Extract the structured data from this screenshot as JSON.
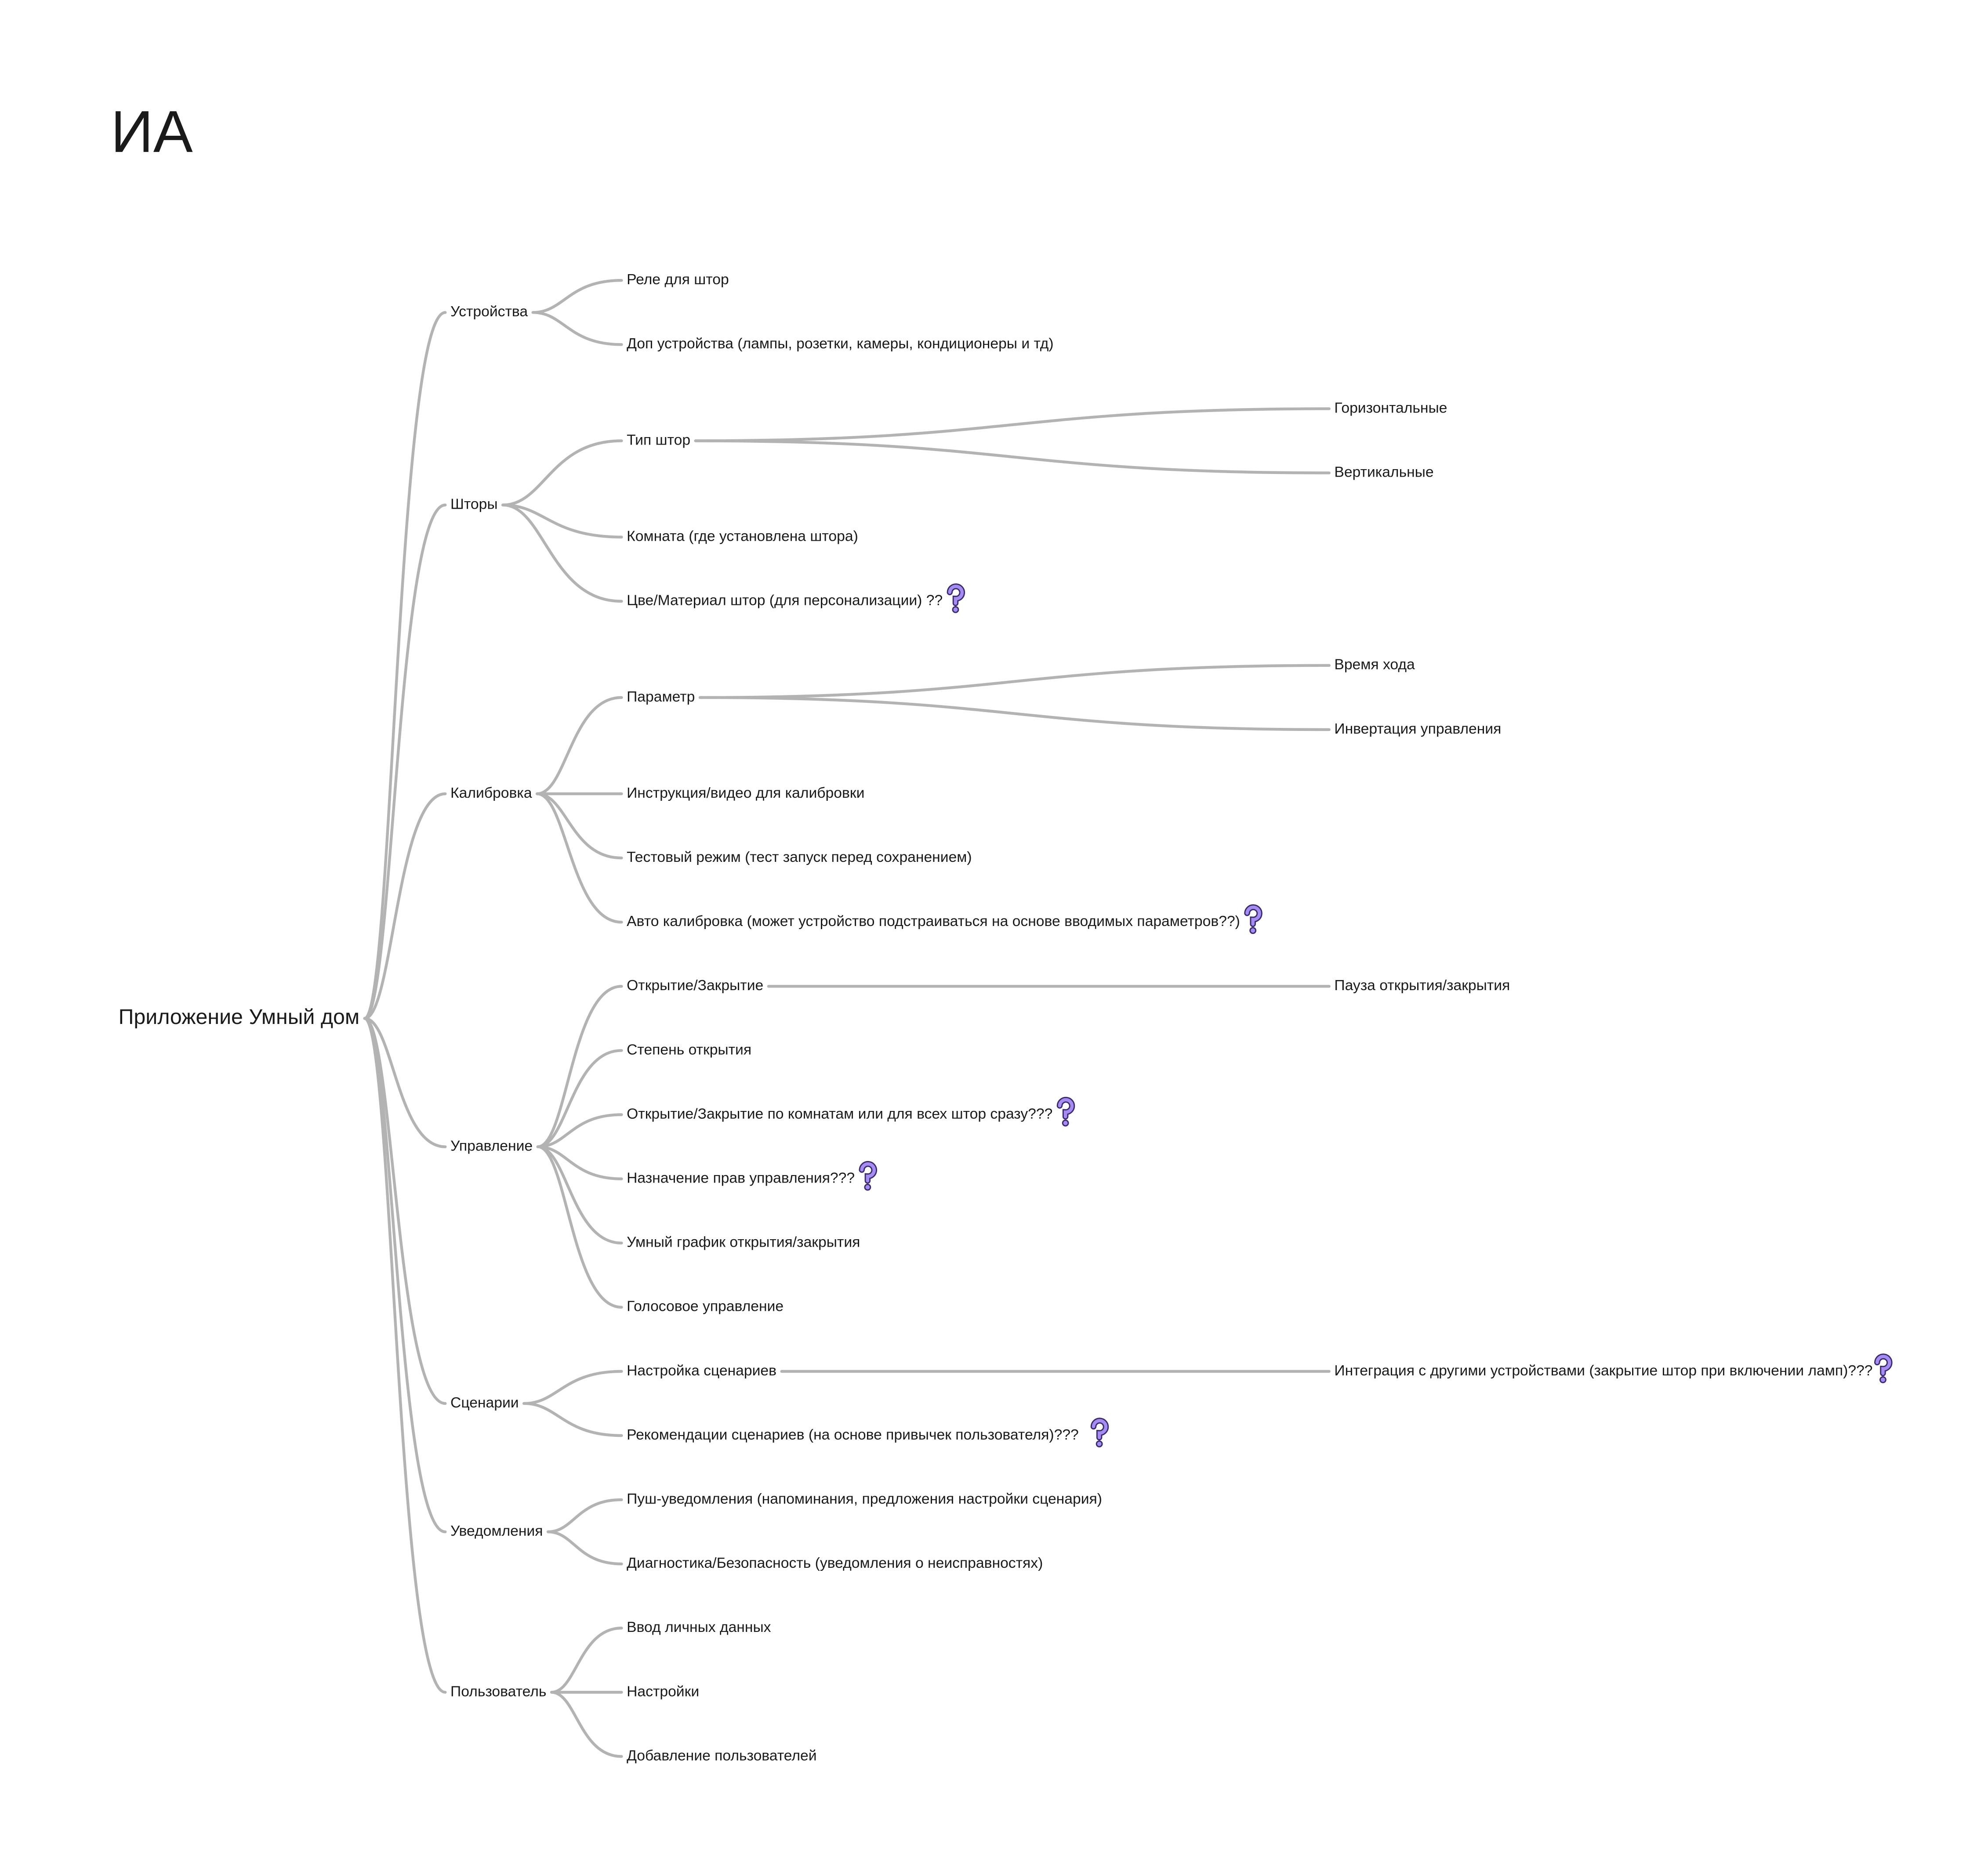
{
  "title": "ИА",
  "root": {
    "label": "Приложение Умный дом",
    "children": [
      {
        "label": "Устройства",
        "children": [
          {
            "label": "Реле для штор"
          },
          {
            "label": "Доп устройства (лампы, розетки, камеры, кондиционеры и тд)"
          }
        ]
      },
      {
        "label": "Шторы",
        "children": [
          {
            "label": "Тип штор",
            "children": [
              {
                "label": "Горизонтальные"
              },
              {
                "label": "Вертикальные"
              }
            ]
          },
          {
            "label": "Комната (где установлена штора)"
          },
          {
            "label": "Цве/Материал штор (для персонализации) ??"
          }
        ]
      },
      {
        "label": "Калибровка",
        "children": [
          {
            "label": "Параметр",
            "children": [
              {
                "label": "Время хода"
              },
              {
                "label": "Инвертация управления"
              }
            ]
          },
          {
            "label": "Инструкция/видео для калибровки"
          },
          {
            "label": "Тестовый режим (тест запуск перед сохранением)"
          },
          {
            "label": "Авто калибровка (может устройство подстраиваться на основе вводимых параметров??)"
          }
        ]
      },
      {
        "label": "Управление",
        "children": [
          {
            "label": "Открытие/Закрытие",
            "children": [
              {
                "label": "Пауза открытия/закрытия"
              }
            ]
          },
          {
            "label": "Степень открытия"
          },
          {
            "label": "Открытие/Закрытие по комнатам или для всех штор сразу???"
          },
          {
            "label": "Назначение прав управления???"
          },
          {
            "label": "Умный график открытия/закрытия"
          },
          {
            "label": "Голосовое управление"
          }
        ]
      },
      {
        "label": "Сценарии",
        "children": [
          {
            "label": "Настройка сценариев",
            "children": [
              {
                "label": "Интеграция с другими устройствами (закрытие штор при включении ламп)???"
              }
            ]
          },
          {
            "label": "Рекомендации сценариев (на основе привычек пользователя)???"
          }
        ]
      },
      {
        "label": "Уведомления",
        "children": [
          {
            "label": "Пуш-уведомления (напоминания, предложения настройки сценария)"
          },
          {
            "label": "Диагностика/Безопасность (уведомления о неисправностях)"
          }
        ]
      },
      {
        "label": "Пользователь",
        "children": [
          {
            "label": "Ввод личных данных"
          },
          {
            "label": "Настройки"
          },
          {
            "label": "Добавление пользователей"
          }
        ]
      }
    ]
  }
}
